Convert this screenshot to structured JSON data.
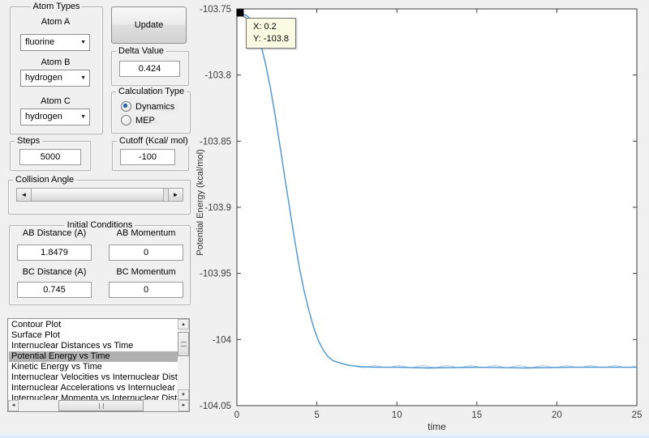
{
  "atom_types": {
    "title": "Atom Types",
    "atom_a_label": "Atom A",
    "atom_a_value": "fluorine",
    "atom_b_label": "Atom B",
    "atom_b_value": "hydrogen",
    "atom_c_label": "Atom C",
    "atom_c_value": "hydrogen"
  },
  "update_button": {
    "label": "Update"
  },
  "delta": {
    "title": "Delta Value",
    "value": "0.424"
  },
  "calculation": {
    "title": "Calculation Type",
    "options": [
      {
        "label": "Dynamics",
        "selected": true
      },
      {
        "label": "MEP",
        "selected": false
      }
    ]
  },
  "steps": {
    "title": "Steps",
    "value": "5000"
  },
  "cutoff": {
    "title": "Cutoff (Kcal/ mol)",
    "value": "-100"
  },
  "collision": {
    "title": "Collision Angle"
  },
  "initial_conditions": {
    "title": "Initial Conditions",
    "fields": [
      {
        "label": "AB Distance (A)",
        "value": "1.8479"
      },
      {
        "label": "AB Momentum",
        "value": "0"
      },
      {
        "label": "BC Distance (A)",
        "value": "0.745"
      },
      {
        "label": "BC Momentum",
        "value": "0"
      }
    ]
  },
  "listbox": {
    "selected_index": 3,
    "items": [
      "Contour Plot",
      "Surface Plot",
      "Internuclear Distances vs Time",
      "Potential Energy vs Time",
      "Kinetic Energy vs Time",
      "Internuclear Velocities vs Internuclear Distance",
      "Internuclear Accelerations vs Internuclear Distance",
      "Internuclear Momenta vs Internuclear Distance"
    ]
  },
  "datatip": {
    "line1": "X: 0.2",
    "line2": "Y: -103.8"
  },
  "chart_data": {
    "type": "line",
    "xlabel": "time",
    "ylabel": "Potential Energy (kcal/mol)",
    "xlim": [
      0,
      25
    ],
    "ylim": [
      -104.05,
      -103.75
    ],
    "xticks": [
      0,
      5,
      10,
      15,
      20,
      25
    ],
    "xtick_labels": [
      "0",
      "5",
      "10",
      "15",
      "20",
      "25"
    ],
    "yticks": [
      -103.75,
      -103.8,
      -103.85,
      -103.9,
      -103.95,
      -104,
      -104.05
    ],
    "ytick_labels": [
      "-103.75",
      "-103.8",
      "-103.85",
      "-103.9",
      "-103.95",
      "-104",
      "-104.05"
    ],
    "grid": false,
    "box": true,
    "marker_point": [
      0.2,
      -103.753
    ],
    "settle_value": -104.0205,
    "series": [
      {
        "name": "Potential Energy",
        "color": "#4a94d4",
        "points": [
          [
            0.2,
            -103.753
          ],
          [
            0.6,
            -103.755
          ],
          [
            0.9,
            -103.758
          ],
          [
            1.2,
            -103.766
          ],
          [
            1.5,
            -103.777
          ],
          [
            1.8,
            -103.792
          ],
          [
            2.1,
            -103.81
          ],
          [
            2.4,
            -103.831
          ],
          [
            2.7,
            -103.854
          ],
          [
            3.0,
            -103.878
          ],
          [
            3.3,
            -103.901
          ],
          [
            3.6,
            -103.924
          ],
          [
            3.9,
            -103.945
          ],
          [
            4.2,
            -103.963
          ],
          [
            4.5,
            -103.978
          ],
          [
            4.8,
            -103.991
          ],
          [
            5.1,
            -104.001
          ],
          [
            5.4,
            -104.008
          ],
          [
            5.7,
            -104.013
          ],
          [
            6.0,
            -104.016
          ],
          [
            6.5,
            -104.018
          ],
          [
            7.0,
            -104.0195
          ],
          [
            7.7,
            -104.0205
          ],
          [
            8.5,
            -104.021
          ],
          [
            10,
            -104.021
          ],
          [
            12,
            -104.0215
          ],
          [
            15,
            -104.021
          ],
          [
            18,
            -104.0215
          ],
          [
            21,
            -104.021
          ],
          [
            25,
            -104.021
          ]
        ]
      }
    ]
  },
  "colors": {
    "line": "#4a94d4",
    "axis": "#3d3d3d",
    "datatip_bg": "#fbfbe4",
    "selection_bg": "#b0b0b0",
    "background": "#f0f0f0",
    "taskbar": "#d2e5f7"
  }
}
